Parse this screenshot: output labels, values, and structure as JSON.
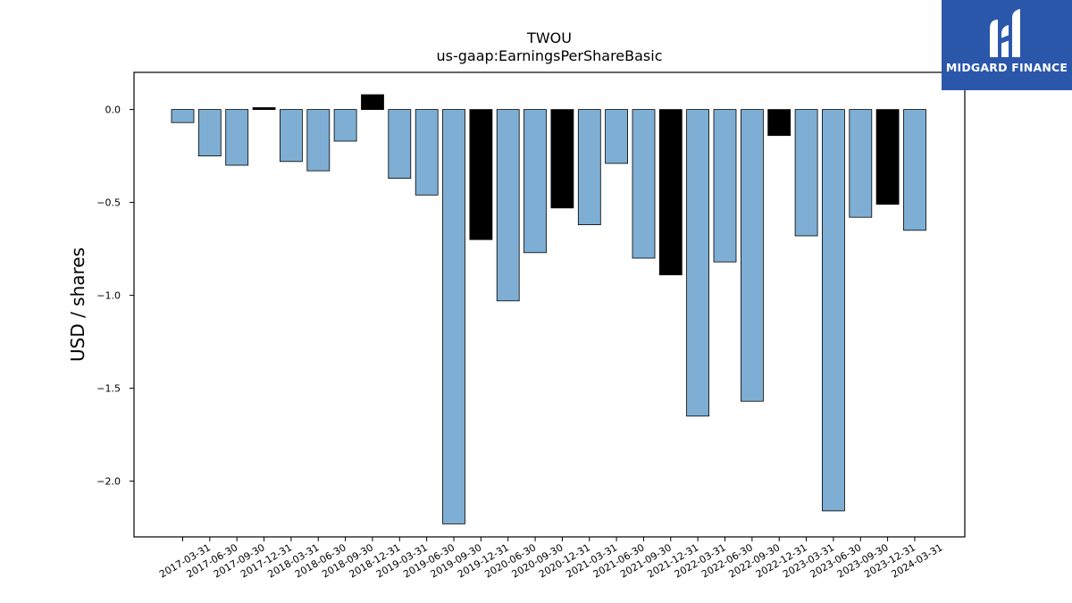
{
  "chart_data": {
    "type": "bar",
    "title": "TWOU",
    "subtitle": "us-gaap:EarningsPerShareBasic",
    "xlabel": "",
    "ylabel": "USD / shares",
    "ylim": [
      -2.3,
      0.2
    ],
    "yticks": [
      0.0,
      -0.5,
      -1.0,
      -1.5,
      -2.0
    ],
    "ytick_labels": [
      "0.0",
      "−0.5",
      "−1.0",
      "−1.5",
      "−2.0"
    ],
    "categories": [
      "2017-03-31",
      "2017-06-30",
      "2017-09-30",
      "2017-12-31",
      "2018-03-31",
      "2018-06-30",
      "2018-09-30",
      "2018-12-31",
      "2019-03-31",
      "2019-06-30",
      "2019-09-30",
      "2019-12-31",
      "2020-06-30",
      "2020-09-30",
      "2020-12-31",
      "2021-03-31",
      "2021-06-30",
      "2021-09-30",
      "2021-12-31",
      "2022-03-31",
      "2022-06-30",
      "2022-09-30",
      "2022-12-31",
      "2023-03-31",
      "2023-06-30",
      "2023-09-30",
      "2023-12-31",
      "2024-03-31"
    ],
    "values": [
      -0.07,
      -0.25,
      -0.3,
      0.01,
      -0.28,
      -0.33,
      -0.17,
      0.08,
      -0.37,
      -0.46,
      -2.23,
      -0.7,
      -1.03,
      -0.77,
      -0.53,
      -0.62,
      -0.29,
      -0.8,
      -0.89,
      -1.65,
      -0.82,
      -1.57,
      -0.14,
      -0.68,
      -2.16,
      -0.58,
      -0.51,
      -0.65
    ],
    "bar_colors": [
      "#7eaed3",
      "#7eaed3",
      "#7eaed3",
      "#000000",
      "#7eaed3",
      "#7eaed3",
      "#7eaed3",
      "#000000",
      "#7eaed3",
      "#7eaed3",
      "#7eaed3",
      "#000000",
      "#7eaed3",
      "#7eaed3",
      "#000000",
      "#7eaed3",
      "#7eaed3",
      "#7eaed3",
      "#000000",
      "#7eaed3",
      "#7eaed3",
      "#7eaed3",
      "#000000",
      "#7eaed3",
      "#7eaed3",
      "#7eaed3",
      "#000000",
      "#7eaed3"
    ],
    "grid": false,
    "legend": "none"
  },
  "logo": {
    "text": "MIDGARD FINANCE",
    "background": "#2b57ab"
  }
}
